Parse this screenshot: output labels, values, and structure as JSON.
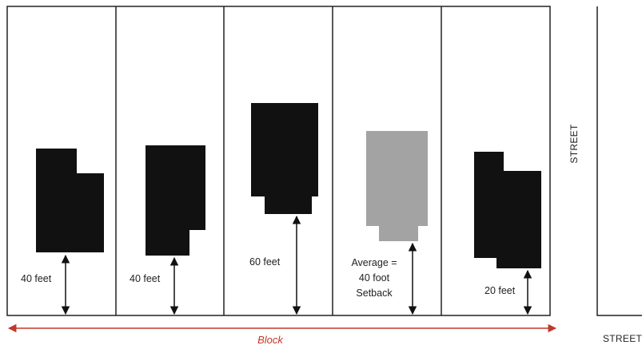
{
  "colors": {
    "building": "#111111",
    "average_building": "#a3a3a3",
    "lot_line": "#222222",
    "block_arrow": "#c0392b"
  },
  "lots": [
    {
      "setback_label": [
        "40 feet"
      ]
    },
    {
      "setback_label": [
        "40 feet"
      ]
    },
    {
      "setback_label": [
        "60 feet"
      ]
    },
    {
      "setback_label": [
        "Average =",
        "40 foot",
        "Setback"
      ]
    },
    {
      "setback_label": [
        "20 feet"
      ]
    }
  ],
  "streets": {
    "side": "STREET",
    "bottom": "STREET"
  },
  "block_label": "Block"
}
